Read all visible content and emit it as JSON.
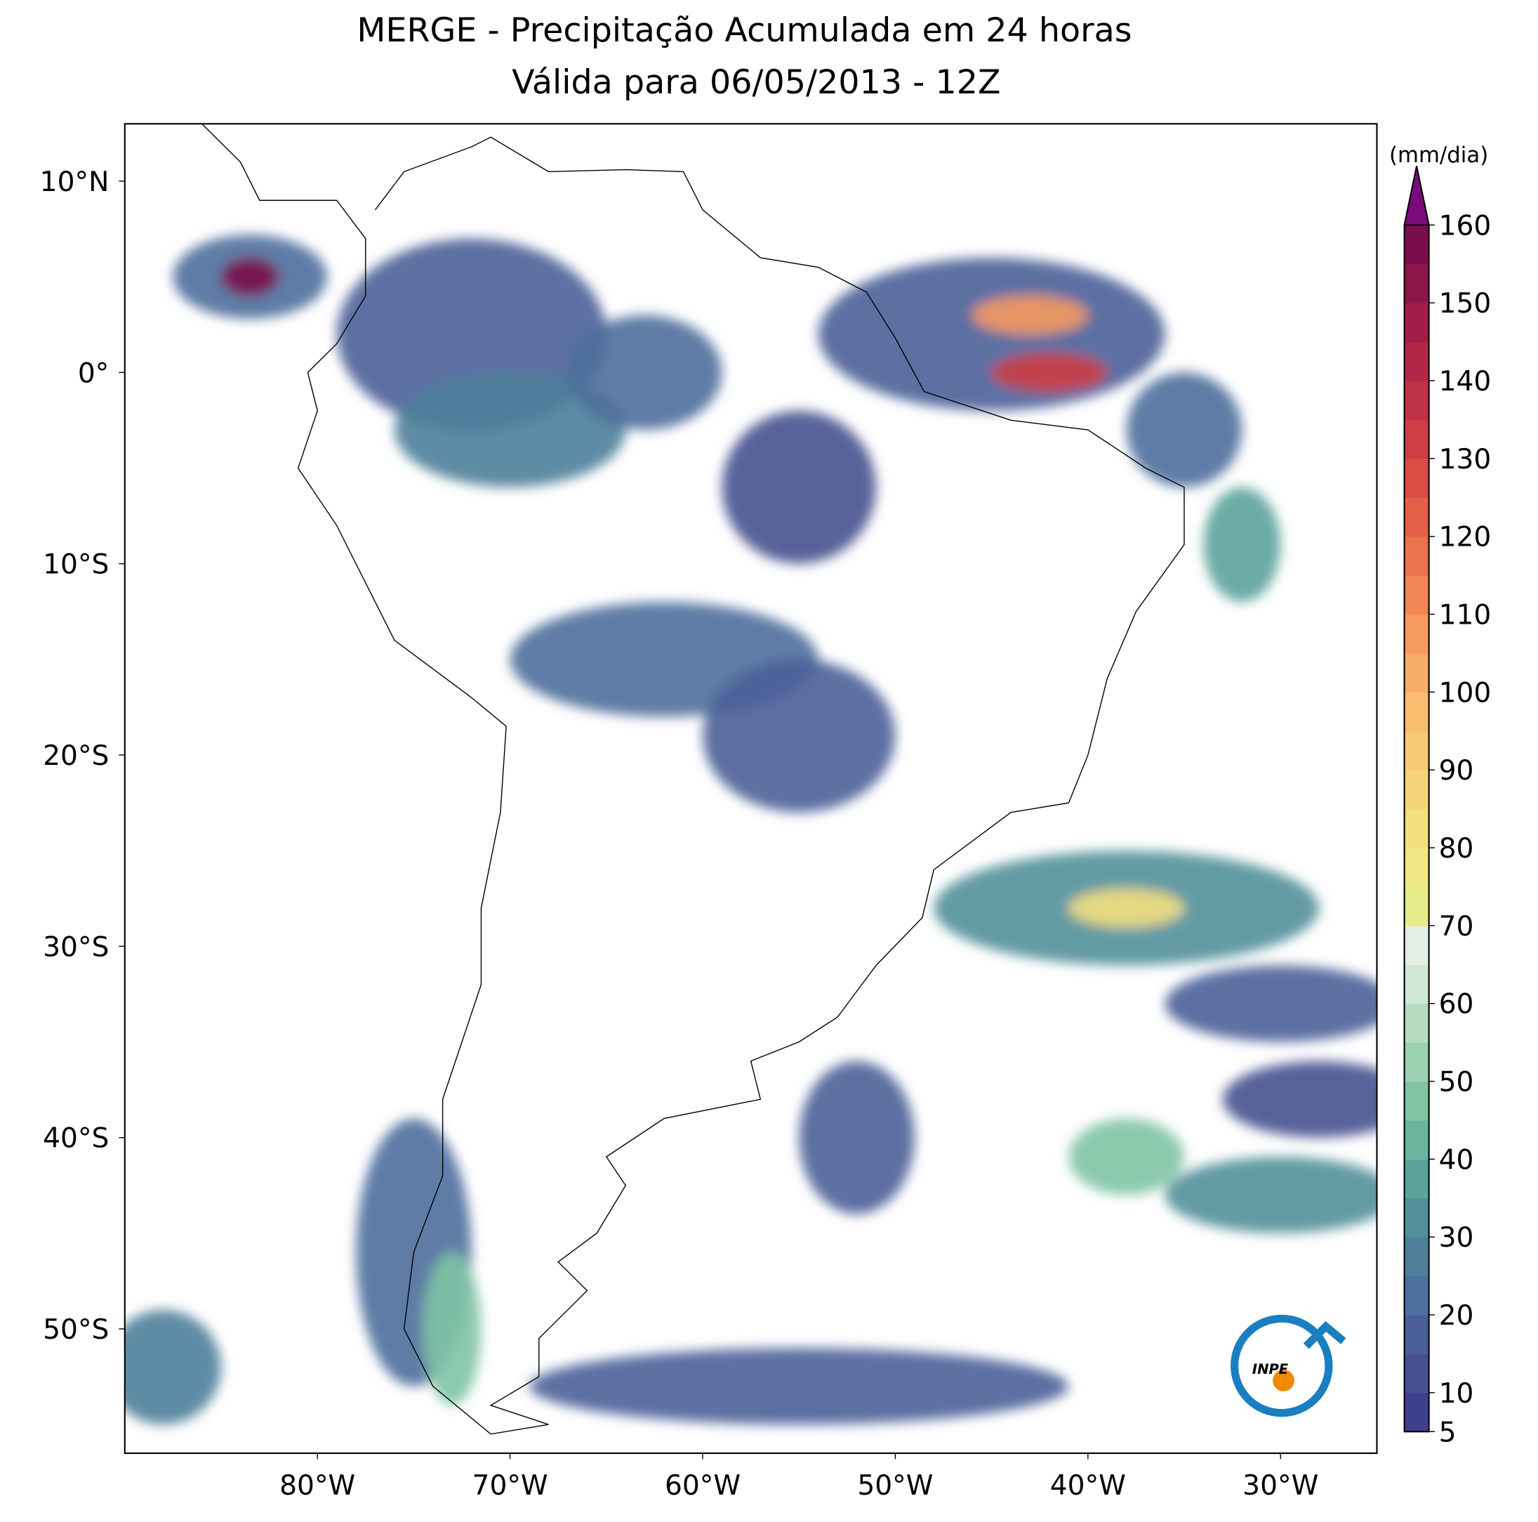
{
  "title": [
    "MERGE - Precipitação Acumulada em 24 horas",
    "Válida para 06/05/2013 - 12Z"
  ],
  "map": {
    "xlim": [
      -90,
      -25
    ],
    "ylim": [
      -56.5,
      13
    ],
    "xticks": [
      {
        "value": -80,
        "label": "80°W"
      },
      {
        "value": -70,
        "label": "70°W"
      },
      {
        "value": -60,
        "label": "60°W"
      },
      {
        "value": -50,
        "label": "50°W"
      },
      {
        "value": -40,
        "label": "40°W"
      },
      {
        "value": -30,
        "label": "30°W"
      }
    ],
    "yticks": [
      {
        "value": 10,
        "label": "10°N"
      },
      {
        "value": 0,
        "label": "0°"
      },
      {
        "value": -10,
        "label": "10°S"
      },
      {
        "value": -20,
        "label": "20°S"
      },
      {
        "value": -30,
        "label": "30°S"
      },
      {
        "value": -40,
        "label": "40°S"
      },
      {
        "value": -50,
        "label": "50°S"
      }
    ]
  },
  "colorbar": {
    "label": "(mm/dia)",
    "levels": [
      5,
      10,
      15,
      20,
      25,
      30,
      35,
      40,
      45,
      50,
      55,
      60,
      65,
      70,
      75,
      80,
      85,
      90,
      95,
      100,
      105,
      110,
      115,
      120,
      125,
      130,
      135,
      140,
      145,
      150,
      155,
      160
    ],
    "colors": [
      "#3f3f8f",
      "#47518f",
      "#4a5f98",
      "#4c6f9c",
      "#4d7f9a",
      "#51909a",
      "#5ba39b",
      "#6bb59e",
      "#80c4a5",
      "#9bd1b0",
      "#b6dcc0",
      "#cfe7d5",
      "#e2efe4",
      "#e6ec8a",
      "#eee784",
      "#f3df7e",
      "#f6d57a",
      "#f8c976",
      "#f9bd70",
      "#f8ac6a",
      "#f69a60",
      "#f28656",
      "#ec724e",
      "#e45f48",
      "#da4d45",
      "#cd3e45",
      "#bf3146",
      "#b02747",
      "#a01e48",
      "#8f164a",
      "#7a0d4c"
    ],
    "extend_color": "#7b0a7b",
    "ticks": [
      5,
      10,
      20,
      30,
      40,
      50,
      60,
      70,
      80,
      90,
      100,
      110,
      120,
      130,
      140,
      150,
      160
    ]
  },
  "logo": "INPE"
}
